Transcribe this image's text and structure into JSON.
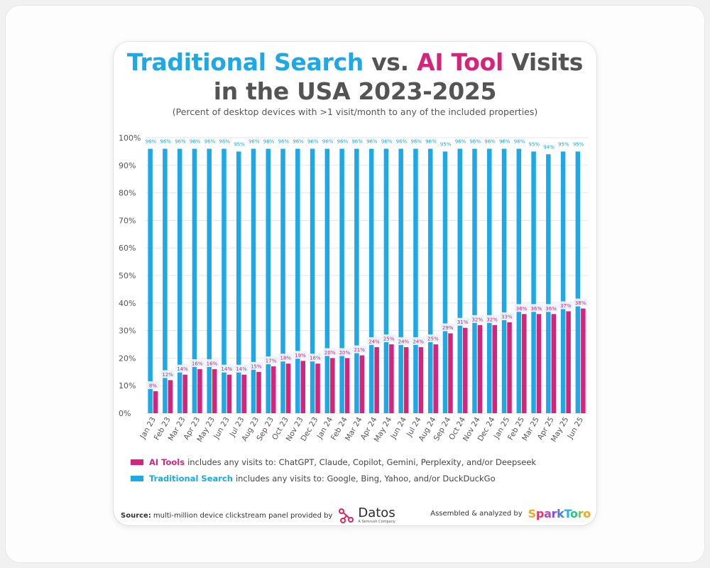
{
  "title": {
    "part1": "Traditional Search",
    "part2": " vs. ",
    "part3": "AI Tool",
    "part4": " Visits",
    "line2": "in the USA 2023-2025"
  },
  "subtitle": "(Percent of desktop devices with >1 visit/month to any of the included properties)",
  "colors": {
    "traditional": "#1ea8e6",
    "ai": "#d6247c",
    "title_gray": "#545454"
  },
  "chart_data": {
    "type": "bar",
    "categories": [
      "Jan 23",
      "Feb 23",
      "Mar 23",
      "Apr 23",
      "May 23",
      "Jun 23",
      "Jul 23",
      "Aug 23",
      "Sep 23",
      "Oct 23",
      "Nov 23",
      "Dec 23",
      "Jan 24",
      "Feb 24",
      "Mar 24",
      "Apr 24",
      "May 24",
      "Jun 24",
      "Jul 24",
      "Aug 24",
      "Sep 24",
      "Oct 24",
      "Nov 24",
      "Dec 24",
      "Jan 25",
      "Feb 25",
      "Mar 25",
      "Apr 25",
      "May 25",
      "Jun 25"
    ],
    "series": [
      {
        "name": "Traditional Search",
        "values": [
          96,
          96,
          96,
          96,
          96,
          96,
          95,
          96,
          96,
          96,
          96,
          96,
          96,
          96,
          96,
          96,
          96,
          96,
          96,
          96,
          95,
          96,
          96,
          96,
          96,
          96,
          95,
          94,
          95,
          95
        ],
        "labels": [
          "96%",
          "96%",
          "96%",
          "96%",
          "96%",
          "96%",
          "95%",
          "96%",
          "96%",
          "96%",
          "96%",
          "96%",
          "96%",
          "96%",
          "96%",
          "96%",
          "96%",
          "96%",
          "96%",
          "96%",
          "95%",
          "96%",
          "96%",
          "96%",
          "96%",
          "96%",
          "95%",
          "94%",
          "95%",
          "95%"
        ]
      },
      {
        "name": "AI Tools",
        "values": [
          8,
          12,
          14,
          16,
          16,
          14,
          14,
          15,
          17,
          18,
          19,
          18,
          20,
          20,
          21,
          24,
          25,
          24,
          24,
          25,
          29,
          31,
          32,
          32,
          33,
          36,
          36,
          36,
          37,
          38
        ],
        "labels": [
          "8%",
          "12%",
          "14%",
          "16%",
          "16%",
          "14%",
          "14%",
          "15%",
          "17%",
          "18%",
          "19%",
          "18%",
          "20%",
          "20%",
          "21%",
          "24%",
          "25%",
          "24%",
          "24%",
          "25%",
          "29%",
          "31%",
          "32%",
          "32%",
          "33%",
          "36%",
          "36%",
          "36%",
          "37%",
          "38%"
        ]
      }
    ],
    "yticks": [
      "0%",
      "10%",
      "20%",
      "30%",
      "40%",
      "50%",
      "60%",
      "70%",
      "80%",
      "90%",
      "100%"
    ],
    "ylim": [
      0,
      100
    ],
    "xlabel": "",
    "ylabel": "",
    "grid": true
  },
  "legend": {
    "ai_name": "AI Tools",
    "ai_desc": "includes any visits to: ChatGPT, Claude, Copilot, Gemini, Perplexity, and/or Deepseek",
    "trad_name": "Traditional Search",
    "trad_desc": "includes any visits to: Google, Bing, Yahoo, and/or DuckDuckGo"
  },
  "footer": {
    "source_label": "Source:",
    "source_text": "multi-million device clickstream panel provided by",
    "datos_name": "Datos",
    "datos_tagline": "A Semrush Company",
    "credit_text": "Assembled & analyzed by",
    "sparktoro_letters": [
      "S",
      "p",
      "a",
      "r",
      "k",
      "T",
      "o",
      "r",
      "o"
    ],
    "sparktoro_colors": [
      "#f5a623",
      "#e8336d",
      "#c940c9",
      "#8a4bd8",
      "#4a78e8",
      "#22b3e6",
      "#2cc48a",
      "#8cc63f",
      "#f5a623"
    ]
  }
}
